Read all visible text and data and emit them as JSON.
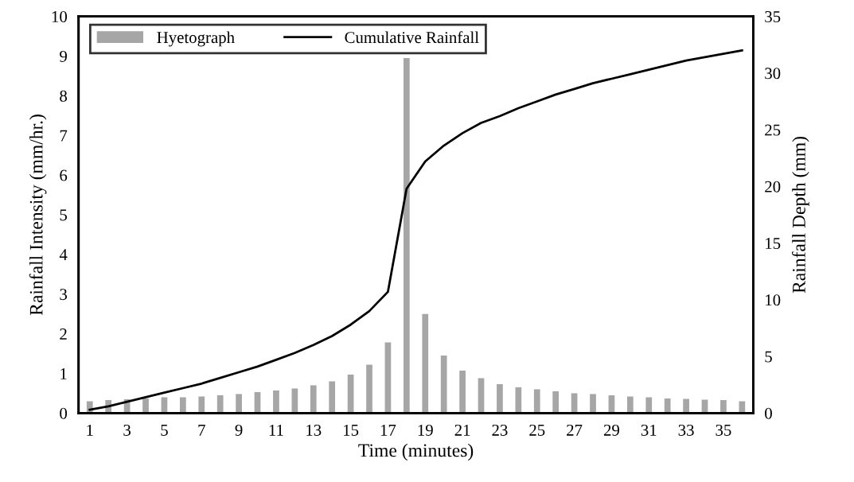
{
  "chart_data": {
    "type": "bar",
    "xlabel": "Time (minutes)",
    "ylabel": "Rainfall Intensity (mm/hr.)",
    "y2label": "Rainfall Depth (mm)",
    "categories": [
      "1",
      null,
      "3",
      null,
      "5",
      null,
      "7",
      null,
      "9",
      null,
      "11",
      null,
      "13",
      null,
      "15",
      null,
      "17",
      null,
      "19",
      null,
      "21",
      null,
      "23",
      null,
      "25",
      null,
      "27",
      null,
      "29",
      null,
      "31",
      null,
      "33",
      null,
      "35",
      null
    ],
    "series": [
      {
        "name": "Hyetograph",
        "color": "#a6a6a6",
        "values": [
          0.3,
          0.33,
          0.35,
          0.37,
          0.4,
          0.4,
          0.42,
          0.45,
          0.48,
          0.53,
          0.57,
          0.62,
          0.7,
          0.8,
          0.97,
          1.22,
          1.78,
          8.95,
          2.5,
          1.45,
          1.07,
          0.88,
          0.73,
          0.65,
          0.6,
          0.55,
          0.5,
          0.48,
          0.45,
          0.42,
          0.4,
          0.37,
          0.36,
          0.34,
          0.33,
          0.3
        ]
      },
      {
        "name": "Cumulative Rainfall",
        "type": "line",
        "axis": "y2",
        "color": "#000000",
        "values": [
          0.3,
          0.6,
          1.0,
          1.4,
          1.8,
          2.2,
          2.6,
          3.1,
          3.6,
          4.1,
          4.7,
          5.3,
          6.0,
          6.8,
          7.8,
          9.0,
          10.7,
          19.8,
          22.2,
          23.6,
          24.7,
          25.6,
          26.2,
          26.9,
          27.5,
          28.1,
          28.6,
          29.1,
          29.5,
          29.9,
          30.3,
          30.7,
          31.1,
          31.4,
          31.7,
          32.0
        ]
      }
    ],
    "ylim": [
      0,
      10
    ],
    "yticks": [
      0,
      1,
      2,
      3,
      4,
      5,
      6,
      7,
      8,
      9,
      10
    ],
    "y2lim": [
      0,
      35
    ],
    "y2ticks": [
      0,
      5,
      10,
      15,
      20,
      25,
      30,
      35
    ],
    "legend": "top",
    "grid": false,
    "marker": "none",
    "line_style": "solid"
  }
}
